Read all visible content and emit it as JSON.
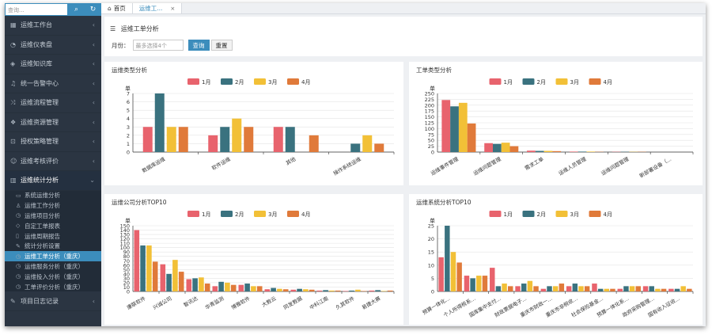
{
  "sidebar": {
    "search_placeholder": "查询...",
    "items": [
      {
        "icon": "grid-icon",
        "glyph": "▦",
        "label": "运维工作台"
      },
      {
        "icon": "gauge-icon",
        "glyph": "◔",
        "label": "运维仪表盘"
      },
      {
        "icon": "book-icon",
        "glyph": "◈",
        "label": "运维知识库"
      },
      {
        "icon": "bell-icon",
        "glyph": "♫",
        "label": "统一告警中心"
      },
      {
        "icon": "shuffle-icon",
        "glyph": "⤨",
        "label": "运维流程管理"
      },
      {
        "icon": "cubes-icon",
        "glyph": "❖",
        "label": "运维资源管理"
      },
      {
        "icon": "lock-icon",
        "glyph": "⊡",
        "label": "授权策略管理"
      },
      {
        "icon": "user-check-icon",
        "glyph": "☺",
        "label": "运维考核评价"
      },
      {
        "icon": "chart-bar-icon",
        "glyph": "▥",
        "label": "运维统计分析"
      }
    ],
    "subitems": [
      {
        "icon": "monitor-icon",
        "glyph": "▭",
        "label": "系统运维分析"
      },
      {
        "icon": "user-icon",
        "glyph": "♙",
        "label": "运维工作分析"
      },
      {
        "icon": "clock-icon",
        "glyph": "◷",
        "label": "运维项目分析"
      },
      {
        "icon": "tag-icon",
        "glyph": "◇",
        "label": "自定工单报表"
      },
      {
        "icon": "file-icon",
        "glyph": "▯",
        "label": "运维周期报告"
      },
      {
        "icon": "wrench-icon",
        "glyph": "✎",
        "label": "统计分析设置"
      },
      {
        "icon": "clock-icon",
        "glyph": "◷",
        "label": "运维工单分析（重庆）",
        "active": true
      },
      {
        "icon": "clock-icon",
        "glyph": "◷",
        "label": "运维服务分析（重庆）"
      },
      {
        "icon": "clock-icon",
        "glyph": "◷",
        "label": "运维投入分析（重庆）"
      },
      {
        "icon": "clock-icon",
        "glyph": "◷",
        "label": "工单评价分析（重庆）"
      }
    ],
    "bottom_item": {
      "icon": "edit-icon",
      "glyph": "✎",
      "label": "项目日志记录"
    }
  },
  "tabs": {
    "home": "首页",
    "current": "运维工..."
  },
  "page": {
    "title": "运维工单分析",
    "filter_label": "月份：",
    "filter_placeholder": "最多选择4个",
    "query_btn": "查询",
    "reset_btn": "重置"
  },
  "colors": {
    "m1": "#e8636d",
    "m2": "#3a727f",
    "m3": "#f2c037",
    "m4": "#e07a3a"
  },
  "chart_data": [
    {
      "type": "bar",
      "title": "运维类型分析",
      "ylabel": "单",
      "ylim": [
        0,
        7
      ],
      "ticks": [
        0,
        1,
        2,
        3,
        4,
        5,
        6,
        7
      ],
      "categories": [
        "数据库运维",
        "软件运维",
        "其他",
        "操作系统运维"
      ],
      "series": [
        {
          "name": "1月",
          "values": [
            3,
            2,
            3,
            0
          ]
        },
        {
          "name": "2月",
          "values": [
            7,
            3,
            3,
            1
          ]
        },
        {
          "name": "3月",
          "values": [
            3,
            4,
            0,
            2
          ]
        },
        {
          "name": "4月",
          "values": [
            3,
            3,
            2,
            1
          ]
        }
      ]
    },
    {
      "type": "bar",
      "title": "工单类型分析",
      "ylabel": "单",
      "ylim": [
        0,
        250
      ],
      "ticks": [
        0,
        25,
        50,
        75,
        100,
        125,
        150,
        175,
        200,
        225,
        250
      ],
      "categories": [
        "运维事件管理",
        "运维问题管理",
        "需求工单",
        "运维人员管理",
        "运维问题管理",
        "新部署设备（..."
      ],
      "series": [
        {
          "name": "1月",
          "values": [
            222,
            38,
            6,
            2,
            1,
            0
          ]
        },
        {
          "name": "2月",
          "values": [
            195,
            35,
            5,
            2,
            1,
            0
          ]
        },
        {
          "name": "3月",
          "values": [
            210,
            40,
            5,
            2,
            1,
            0
          ]
        },
        {
          "name": "4月",
          "values": [
            122,
            25,
            4,
            1,
            1,
            0
          ]
        }
      ]
    },
    {
      "type": "bar",
      "title": "运维公司分析TOP10",
      "ylabel": "单",
      "ylim": [
        0,
        150
      ],
      "ticks": [
        0,
        10,
        20,
        30,
        40,
        50,
        60,
        70,
        80,
        90,
        100,
        110,
        120,
        130,
        140,
        150
      ],
      "categories": [
        "康联软件",
        "兴诚公司",
        "智讯达",
        "华青监测",
        "博雅软件",
        "大数云",
        "同发数据",
        "中科江南",
        "久其软件",
        "易捷大赛"
      ],
      "series": [
        {
          "name": "1月",
          "values": [
            140,
            62,
            28,
            12,
            15,
            5,
            4,
            2,
            1,
            2
          ]
        },
        {
          "name": "2月",
          "values": [
            105,
            40,
            30,
            22,
            18,
            8,
            6,
            3,
            2,
            3
          ]
        },
        {
          "name": "3月",
          "values": [
            105,
            72,
            32,
            20,
            12,
            6,
            5,
            2,
            4,
            1
          ]
        },
        {
          "name": "4月",
          "values": [
            68,
            45,
            18,
            15,
            12,
            5,
            4,
            2,
            1,
            2
          ]
        }
      ]
    },
    {
      "type": "bar",
      "title": "运维系统分析TOP10",
      "ylabel": "单",
      "ylim": [
        0,
        25
      ],
      "ticks": [
        0,
        5,
        10,
        15,
        20,
        25
      ],
      "categories": [
        "预算一体化...",
        "个人所得税系...",
        "国库集中支付...",
        "财政票据电子...",
        "重庆市财政一...",
        "重庆市非税收...",
        "社会保险基金...",
        "预算一体化系...",
        "政府采购管理...",
        "国有收入征收..."
      ],
      "series": [
        {
          "name": "1月",
          "values": [
            13,
            6,
            9,
            2,
            1,
            2,
            3,
            1,
            2,
            1
          ]
        },
        {
          "name": "2月",
          "values": [
            25,
            5,
            2,
            3,
            2,
            3,
            1,
            2,
            2,
            1
          ]
        },
        {
          "name": "3月",
          "values": [
            15,
            6,
            3,
            4,
            2,
            2,
            1,
            2,
            1,
            2
          ]
        },
        {
          "name": "4月",
          "values": [
            11,
            6,
            2,
            2,
            3,
            2,
            1,
            2,
            1,
            1
          ]
        }
      ]
    }
  ]
}
